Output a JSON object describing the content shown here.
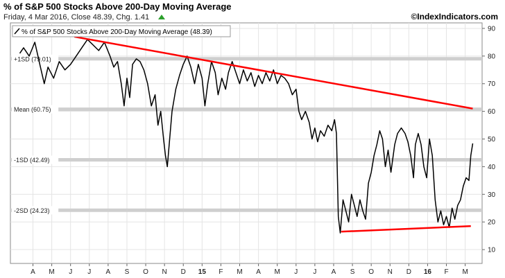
{
  "header": {
    "title": "% of S&P 500 Stocks Above 200-Day Moving Average",
    "subtitle": "Friday, 4 Mar 2016, Close 48.39, Chg. 1.41",
    "credit": "©IndexIndicators.com",
    "change_direction": "up",
    "change_color": "#2ca02c"
  },
  "chart_data": {
    "type": "line",
    "legend": "% of S&P 500 Stocks Above 200-Day Moving Average (48.39)",
    "legend_placement": "top-left",
    "grid": true,
    "ylim": [
      5,
      92
    ],
    "y_ticks": [
      10,
      20,
      30,
      40,
      50,
      60,
      70,
      80,
      90
    ],
    "x_ticks": [
      {
        "label": "A",
        "bold": false,
        "t": 0.2
      },
      {
        "label": "M",
        "bold": false,
        "t": 1.2
      },
      {
        "label": "J",
        "bold": false,
        "t": 2.2
      },
      {
        "label": "J",
        "bold": false,
        "t": 3.2
      },
      {
        "label": "A",
        "bold": false,
        "t": 4.2
      },
      {
        "label": "S",
        "bold": false,
        "t": 5.2
      },
      {
        "label": "O",
        "bold": false,
        "t": 6.2
      },
      {
        "label": "N",
        "bold": false,
        "t": 7.2
      },
      {
        "label": "D",
        "bold": false,
        "t": 8.2
      },
      {
        "label": "15",
        "bold": true,
        "t": 9.2
      },
      {
        "label": "F",
        "bold": false,
        "t": 10.2
      },
      {
        "label": "M",
        "bold": false,
        "t": 11.2
      },
      {
        "label": "A",
        "bold": false,
        "t": 12.2
      },
      {
        "label": "M",
        "bold": false,
        "t": 13.2
      },
      {
        "label": "J",
        "bold": false,
        "t": 14.2
      },
      {
        "label": "J",
        "bold": false,
        "t": 15.2
      },
      {
        "label": "A",
        "bold": false,
        "t": 16.2
      },
      {
        "label": "S",
        "bold": false,
        "t": 17.2
      },
      {
        "label": "O",
        "bold": false,
        "t": 18.2
      },
      {
        "label": "N",
        "bold": false,
        "t": 19.2
      },
      {
        "label": "D",
        "bold": false,
        "t": 20.2
      },
      {
        "label": "16",
        "bold": true,
        "t": 21.2
      },
      {
        "label": "F",
        "bold": false,
        "t": 22.2
      },
      {
        "label": "M",
        "bold": false,
        "t": 23.2
      }
    ],
    "reference_lines": [
      {
        "label": "+1SD (79.01)",
        "value": 79.01
      },
      {
        "label": "Mean (60.75)",
        "value": 60.75
      },
      {
        "label": "-1SD (42.49)",
        "value": 42.49
      },
      {
        "label": "-2SD (24.23)",
        "value": 24.23
      }
    ],
    "trendlines": [
      {
        "from": [
          2.4,
          87
        ],
        "to": [
          23.6,
          61
        ],
        "color": "#ff0000"
      },
      {
        "from": [
          16.6,
          16.5
        ],
        "to": [
          23.5,
          18.5
        ],
        "color": "#ff0000"
      }
    ],
    "series": [
      {
        "color": "#000000",
        "points": [
          [
            -0.5,
            81
          ],
          [
            -0.3,
            83
          ],
          [
            0.0,
            80
          ],
          [
            0.3,
            85
          ],
          [
            0.6,
            76
          ],
          [
            0.8,
            70
          ],
          [
            1.0,
            76
          ],
          [
            1.3,
            72
          ],
          [
            1.6,
            78
          ],
          [
            1.9,
            75
          ],
          [
            2.2,
            77
          ],
          [
            2.5,
            80
          ],
          [
            2.8,
            83
          ],
          [
            3.1,
            86
          ],
          [
            3.4,
            84
          ],
          [
            3.7,
            82
          ],
          [
            4.0,
            85
          ],
          [
            4.3,
            80
          ],
          [
            4.5,
            76
          ],
          [
            4.7,
            78
          ],
          [
            4.9,
            70
          ],
          [
            5.05,
            62
          ],
          [
            5.2,
            72
          ],
          [
            5.35,
            65
          ],
          [
            5.5,
            77
          ],
          [
            5.7,
            79
          ],
          [
            5.9,
            78
          ],
          [
            6.1,
            75
          ],
          [
            6.3,
            70
          ],
          [
            6.5,
            62
          ],
          [
            6.7,
            66
          ],
          [
            6.85,
            55
          ],
          [
            7.0,
            60
          ],
          [
            7.15,
            50
          ],
          [
            7.25,
            44
          ],
          [
            7.35,
            40
          ],
          [
            7.45,
            48
          ],
          [
            7.6,
            60
          ],
          [
            7.8,
            68
          ],
          [
            8.0,
            73
          ],
          [
            8.2,
            77
          ],
          [
            8.4,
            80
          ],
          [
            8.6,
            76
          ],
          [
            8.8,
            70
          ],
          [
            9.0,
            77
          ],
          [
            9.2,
            72
          ],
          [
            9.35,
            62
          ],
          [
            9.5,
            70
          ],
          [
            9.7,
            78
          ],
          [
            9.9,
            74
          ],
          [
            10.05,
            66
          ],
          [
            10.25,
            72
          ],
          [
            10.45,
            68
          ],
          [
            10.6,
            74
          ],
          [
            10.8,
            78
          ],
          [
            11.0,
            74
          ],
          [
            11.2,
            70
          ],
          [
            11.4,
            75
          ],
          [
            11.6,
            71
          ],
          [
            11.8,
            74
          ],
          [
            12.0,
            69
          ],
          [
            12.2,
            73
          ],
          [
            12.4,
            70
          ],
          [
            12.6,
            74
          ],
          [
            12.8,
            71
          ],
          [
            13.0,
            75
          ],
          [
            13.2,
            70
          ],
          [
            13.4,
            73
          ],
          [
            13.6,
            72
          ],
          [
            13.8,
            70
          ],
          [
            14.0,
            66
          ],
          [
            14.2,
            68
          ],
          [
            14.35,
            60
          ],
          [
            14.5,
            57
          ],
          [
            14.7,
            60
          ],
          [
            14.9,
            56
          ],
          [
            15.05,
            50
          ],
          [
            15.2,
            54
          ],
          [
            15.35,
            49
          ],
          [
            15.5,
            53
          ],
          [
            15.7,
            51
          ],
          [
            15.9,
            55
          ],
          [
            16.1,
            53
          ],
          [
            16.25,
            57
          ],
          [
            16.35,
            52
          ],
          [
            16.45,
            22
          ],
          [
            16.55,
            16
          ],
          [
            16.7,
            28
          ],
          [
            16.85,
            24
          ],
          [
            17.0,
            20
          ],
          [
            17.15,
            30
          ],
          [
            17.3,
            26
          ],
          [
            17.45,
            22
          ],
          [
            17.6,
            28
          ],
          [
            17.75,
            24
          ],
          [
            17.9,
            21
          ],
          [
            18.05,
            34
          ],
          [
            18.2,
            38
          ],
          [
            18.35,
            44
          ],
          [
            18.5,
            48
          ],
          [
            18.65,
            53
          ],
          [
            18.8,
            50
          ],
          [
            18.95,
            40
          ],
          [
            19.1,
            46
          ],
          [
            19.25,
            38
          ],
          [
            19.45,
            48
          ],
          [
            19.6,
            52
          ],
          [
            19.8,
            54
          ],
          [
            20.0,
            52
          ],
          [
            20.15,
            49
          ],
          [
            20.3,
            44
          ],
          [
            20.45,
            36
          ],
          [
            20.55,
            48
          ],
          [
            20.7,
            52
          ],
          [
            20.85,
            48
          ],
          [
            21.0,
            40
          ],
          [
            21.15,
            36
          ],
          [
            21.3,
            50
          ],
          [
            21.45,
            44
          ],
          [
            21.6,
            28
          ],
          [
            21.75,
            20
          ],
          [
            21.9,
            24
          ],
          [
            22.05,
            19
          ],
          [
            22.2,
            22
          ],
          [
            22.35,
            18
          ],
          [
            22.5,
            25
          ],
          [
            22.65,
            21
          ],
          [
            22.8,
            26
          ],
          [
            22.95,
            28
          ],
          [
            23.1,
            33
          ],
          [
            23.25,
            36
          ],
          [
            23.4,
            35
          ],
          [
            23.5,
            44
          ],
          [
            23.6,
            48.39
          ]
        ]
      }
    ]
  }
}
